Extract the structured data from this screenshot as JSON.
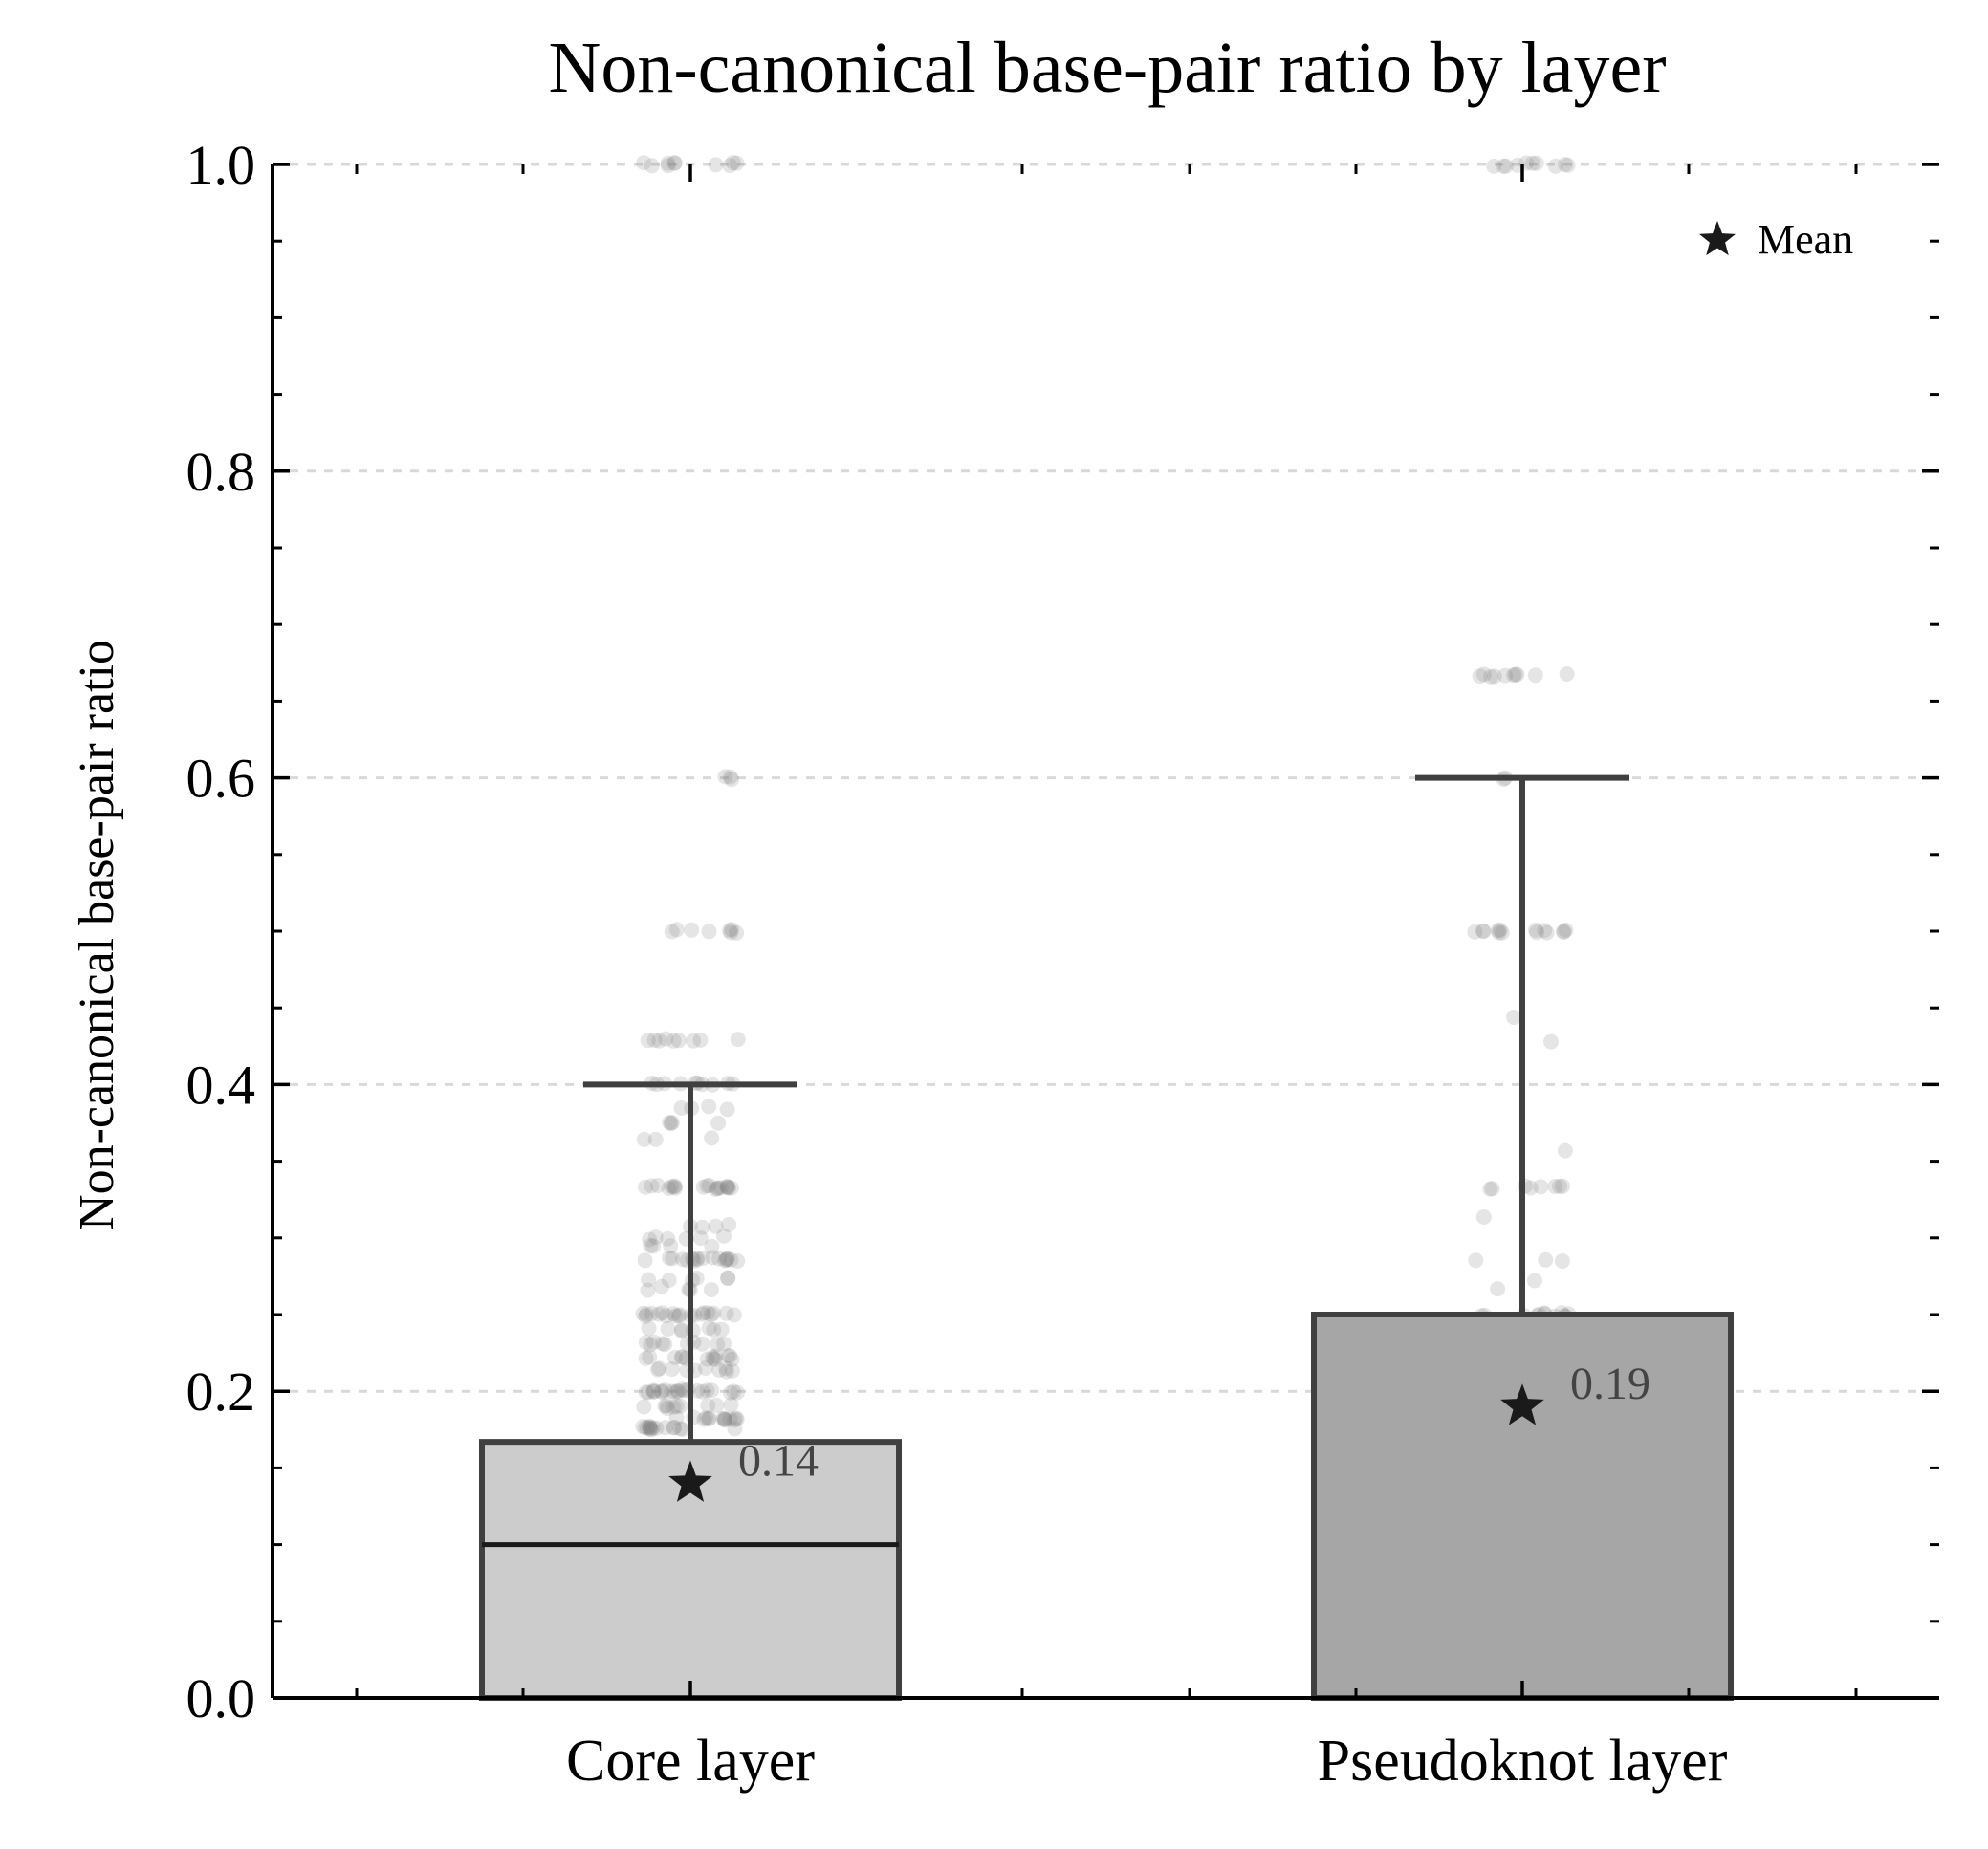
{
  "chart_data": {
    "type": "box",
    "title": "Non-canonical base-pair ratio by layer",
    "ylabel": "Non-canonical base-pair ratio",
    "xlabel": "",
    "ylim": [
      0.0,
      1.0
    ],
    "yticks": [
      0.0,
      0.2,
      0.4,
      0.6,
      0.8,
      1.0
    ],
    "ytick_labels": [
      "0.0",
      "0.2",
      "0.4",
      "0.6",
      "0.8",
      "1.0"
    ],
    "grid": "horizontal dashed at major y ticks",
    "legend": {
      "position": "top-right",
      "entries": [
        {
          "marker": "star",
          "label": "Mean"
        }
      ]
    },
    "categories": [
      "Core layer",
      "Pseudoknot layer"
    ],
    "boxes": [
      {
        "category": "Core layer",
        "whisker_low": 0.0,
        "q1": 0.0,
        "median": 0.1,
        "q3": 0.167,
        "whisker_high": 0.4,
        "mean": 0.14,
        "mean_label": "0.14",
        "fill": "#cccccc",
        "show_median": true,
        "points": [
          {
            "y": 1.0,
            "n": 10
          },
          {
            "y": 0.6,
            "n": 3
          },
          {
            "y": 0.5,
            "n": 8
          },
          {
            "y": 0.429,
            "n": 9
          },
          {
            "y": 0.4,
            "n": 10
          },
          {
            "y": 0.385,
            "n": 4
          },
          {
            "y": 0.375,
            "n": 4
          },
          {
            "y": 0.364,
            "n": 3
          },
          {
            "y": 0.333,
            "n": 20
          },
          {
            "y": 0.308,
            "n": 4
          },
          {
            "y": 0.3,
            "n": 6
          },
          {
            "y": 0.294,
            "n": 4
          },
          {
            "y": 0.286,
            "n": 18
          },
          {
            "y": 0.273,
            "n": 6
          },
          {
            "y": 0.267,
            "n": 5
          },
          {
            "y": 0.25,
            "n": 20
          },
          {
            "y": 0.24,
            "n": 8
          },
          {
            "y": 0.231,
            "n": 10
          },
          {
            "y": 0.222,
            "n": 14
          },
          {
            "y": 0.214,
            "n": 10
          },
          {
            "y": 0.2,
            "n": 22
          },
          {
            "y": 0.19,
            "n": 10
          },
          {
            "y": 0.182,
            "n": 14
          },
          {
            "y": 0.176,
            "n": 16
          }
        ]
      },
      {
        "category": "Pseudoknot layer",
        "whisker_low": 0.0,
        "q1": 0.0,
        "median": 0.0,
        "q3": 0.25,
        "whisker_high": 0.6,
        "mean": 0.19,
        "mean_label": "0.19",
        "fill": "#a6a6a6",
        "show_median": false,
        "points": [
          {
            "y": 1.0,
            "n": 10
          },
          {
            "y": 0.667,
            "n": 10
          },
          {
            "y": 0.6,
            "n": 2
          },
          {
            "y": 0.5,
            "n": 14
          },
          {
            "y": 0.444,
            "n": 1
          },
          {
            "y": 0.429,
            "n": 1
          },
          {
            "y": 0.357,
            "n": 1
          },
          {
            "y": 0.333,
            "n": 8
          },
          {
            "y": 0.313,
            "n": 1
          },
          {
            "y": 0.286,
            "n": 3
          },
          {
            "y": 0.273,
            "n": 1
          },
          {
            "y": 0.267,
            "n": 1
          },
          {
            "y": 0.25,
            "n": 12
          }
        ]
      }
    ],
    "colors": {
      "box_edge": "#404040",
      "whisker": "#404040",
      "point": "#7f7f7f",
      "mean_marker": "#1a1a1a",
      "grid": "#d9d9d9"
    }
  }
}
